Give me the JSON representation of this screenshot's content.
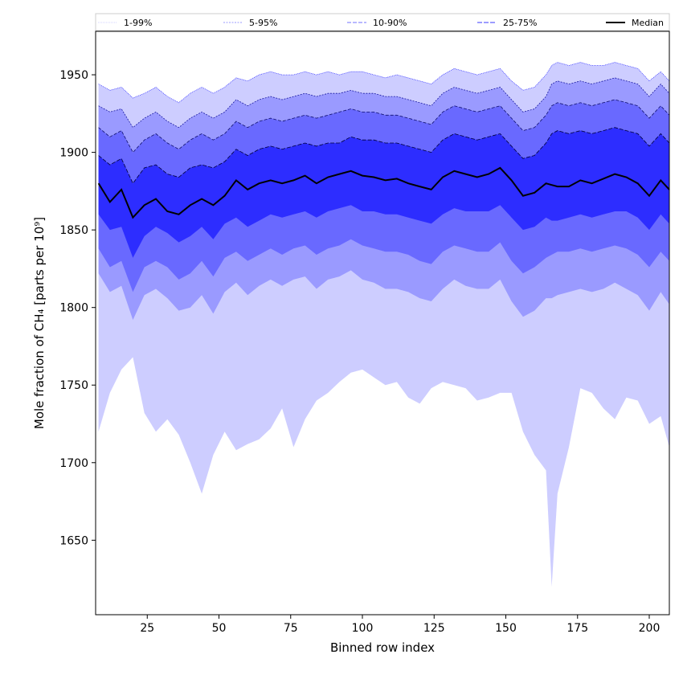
{
  "chart_data": {
    "type": "area",
    "title": "",
    "xlabel": "Binned row index",
    "ylabel": "Mole fraction of CH₄ [parts per 10⁹]",
    "xlim": [
      7,
      207
    ],
    "ylim": [
      1602,
      1978
    ],
    "xticks": [
      25,
      50,
      75,
      100,
      125,
      150,
      175,
      200
    ],
    "yticks": [
      1650,
      1700,
      1750,
      1800,
      1850,
      1900,
      1950
    ],
    "grid": false,
    "legend": {
      "placement": "top",
      "entries": [
        {
          "label": "1-99%",
          "band": "p01_p99",
          "line_color": "#d0d0ff",
          "dash": "1,1"
        },
        {
          "label": "5-95%",
          "band": "p05_p95",
          "line_color": "#9a9aff",
          "dash": "2,1.5"
        },
        {
          "label": "10-90%",
          "band": "p10_p90",
          "line_color": "#7070ff",
          "dash": "5,2"
        },
        {
          "label": "25-75%",
          "band": "p25_p75",
          "line_color": "#3a3aff",
          "dash": "6,2"
        },
        {
          "label": "Median",
          "band": "median",
          "line_color": "#000000",
          "dash": ""
        }
      ]
    },
    "fill_colors": {
      "p01_p99": "#cdcdff",
      "p05_p95": "#9a9aff",
      "p10_p90": "#6969ff",
      "p25_p75": "#2d2dff"
    },
    "x": [
      8,
      12,
      16,
      20,
      24,
      28,
      32,
      36,
      40,
      44,
      48,
      52,
      56,
      60,
      64,
      68,
      72,
      76,
      80,
      84,
      88,
      92,
      96,
      100,
      104,
      108,
      112,
      116,
      120,
      124,
      128,
      132,
      136,
      140,
      144,
      148,
      152,
      156,
      160,
      164,
      166,
      168,
      172,
      176,
      180,
      184,
      188,
      192,
      196,
      200,
      204,
      207
    ],
    "series": [
      {
        "name": "Median",
        "values": [
          1880,
          1868,
          1876,
          1858,
          1866,
          1870,
          1862,
          1860,
          1866,
          1870,
          1866,
          1872,
          1882,
          1876,
          1880,
          1882,
          1880,
          1882,
          1885,
          1880,
          1884,
          1886,
          1888,
          1885,
          1884,
          1882,
          1883,
          1880,
          1878,
          1876,
          1884,
          1888,
          1886,
          1884,
          1886,
          1890,
          1882,
          1872,
          1874,
          1880,
          1879,
          1878,
          1878,
          1882,
          1880,
          1883,
          1886,
          1884,
          1880,
          1872,
          1882,
          1876
        ]
      },
      {
        "name": "p25",
        "values": [
          1860,
          1850,
          1852,
          1832,
          1846,
          1852,
          1848,
          1842,
          1846,
          1852,
          1844,
          1854,
          1858,
          1852,
          1856,
          1860,
          1858,
          1860,
          1862,
          1858,
          1862,
          1864,
          1866,
          1862,
          1862,
          1860,
          1860,
          1858,
          1856,
          1854,
          1860,
          1864,
          1862,
          1862,
          1862,
          1866,
          1858,
          1850,
          1852,
          1858,
          1856,
          1856,
          1858,
          1860,
          1858,
          1860,
          1862,
          1862,
          1858,
          1850,
          1860,
          1854
        ]
      },
      {
        "name": "p75",
        "values": [
          1898,
          1892,
          1896,
          1880,
          1890,
          1892,
          1886,
          1884,
          1890,
          1892,
          1890,
          1894,
          1902,
          1898,
          1902,
          1904,
          1902,
          1904,
          1906,
          1904,
          1906,
          1906,
          1910,
          1908,
          1908,
          1906,
          1906,
          1904,
          1902,
          1900,
          1908,
          1912,
          1910,
          1908,
          1910,
          1912,
          1904,
          1896,
          1898,
          1906,
          1912,
          1914,
          1912,
          1914,
          1912,
          1914,
          1916,
          1914,
          1912,
          1904,
          1912,
          1906
        ]
      },
      {
        "name": "p10",
        "values": [
          1838,
          1826,
          1830,
          1810,
          1826,
          1830,
          1826,
          1818,
          1822,
          1830,
          1820,
          1832,
          1836,
          1830,
          1834,
          1838,
          1834,
          1838,
          1840,
          1834,
          1838,
          1840,
          1844,
          1840,
          1838,
          1836,
          1836,
          1834,
          1830,
          1828,
          1836,
          1840,
          1838,
          1836,
          1836,
          1842,
          1830,
          1822,
          1826,
          1832,
          1834,
          1836,
          1836,
          1838,
          1836,
          1838,
          1840,
          1838,
          1834,
          1826,
          1836,
          1830
        ]
      },
      {
        "name": "p90",
        "values": [
          1916,
          1910,
          1914,
          1900,
          1908,
          1912,
          1906,
          1902,
          1908,
          1912,
          1908,
          1912,
          1920,
          1916,
          1920,
          1922,
          1920,
          1922,
          1924,
          1922,
          1924,
          1926,
          1928,
          1926,
          1926,
          1924,
          1924,
          1922,
          1920,
          1918,
          1926,
          1930,
          1928,
          1926,
          1928,
          1930,
          1922,
          1914,
          1916,
          1924,
          1930,
          1932,
          1930,
          1932,
          1930,
          1932,
          1934,
          1932,
          1930,
          1922,
          1930,
          1924
        ]
      },
      {
        "name": "p05",
        "values": [
          1822,
          1810,
          1814,
          1792,
          1808,
          1812,
          1806,
          1798,
          1800,
          1808,
          1796,
          1810,
          1816,
          1808,
          1814,
          1818,
          1814,
          1818,
          1820,
          1812,
          1818,
          1820,
          1824,
          1818,
          1816,
          1812,
          1812,
          1810,
          1806,
          1804,
          1812,
          1818,
          1814,
          1812,
          1812,
          1818,
          1804,
          1794,
          1798,
          1806,
          1806,
          1808,
          1810,
          1812,
          1810,
          1812,
          1816,
          1812,
          1808,
          1798,
          1810,
          1802
        ]
      },
      {
        "name": "p95",
        "values": [
          1930,
          1926,
          1928,
          1916,
          1922,
          1926,
          1920,
          1916,
          1922,
          1926,
          1922,
          1926,
          1934,
          1930,
          1934,
          1936,
          1934,
          1936,
          1938,
          1936,
          1938,
          1938,
          1940,
          1938,
          1938,
          1936,
          1936,
          1934,
          1932,
          1930,
          1938,
          1942,
          1940,
          1938,
          1940,
          1942,
          1934,
          1926,
          1928,
          1936,
          1944,
          1946,
          1944,
          1946,
          1944,
          1946,
          1948,
          1946,
          1944,
          1936,
          1944,
          1938
        ]
      },
      {
        "name": "p01",
        "values": [
          1720,
          1745,
          1760,
          1768,
          1732,
          1720,
          1728,
          1718,
          1700,
          1680,
          1705,
          1720,
          1708,
          1712,
          1715,
          1722,
          1735,
          1710,
          1728,
          1740,
          1745,
          1752,
          1758,
          1760,
          1755,
          1750,
          1752,
          1742,
          1738,
          1748,
          1752,
          1750,
          1748,
          1740,
          1742,
          1745,
          1745,
          1720,
          1705,
          1695,
          1620,
          1680,
          1710,
          1748,
          1745,
          1735,
          1728,
          1742,
          1740,
          1725,
          1730,
          1710
        ]
      },
      {
        "name": "p99",
        "values": [
          1944,
          1940,
          1942,
          1935,
          1938,
          1942,
          1936,
          1932,
          1938,
          1942,
          1938,
          1942,
          1948,
          1946,
          1950,
          1952,
          1950,
          1950,
          1952,
          1950,
          1952,
          1950,
          1952,
          1952,
          1950,
          1948,
          1950,
          1948,
          1946,
          1944,
          1950,
          1954,
          1952,
          1950,
          1952,
          1954,
          1946,
          1940,
          1942,
          1950,
          1956,
          1958,
          1956,
          1958,
          1956,
          1956,
          1958,
          1956,
          1954,
          1946,
          1952,
          1946
        ]
      }
    ]
  }
}
